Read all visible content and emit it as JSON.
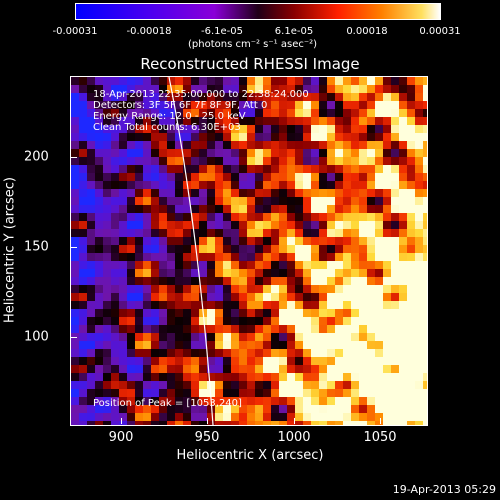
{
  "colorbar": {
    "ticks": [
      "-0.00031",
      "-0.00018",
      "-6.1e-05",
      "6.1e-05",
      "0.00018",
      "0.00031"
    ],
    "units": "(photons cm⁻² s⁻¹ asec⁻²)"
  },
  "title": "Reconstructed RHESSI Image",
  "annotations": {
    "time_range": "18-Apr-2013 22:35:00.000 to 22:38:24.000",
    "detectors": "Detectors: 3F 5F 6F 7F 8F 9F, Att 0",
    "energy": "Energy Range: 12.0 - 25.0 keV",
    "clean": "Clean     Total counts: 6.30E+03",
    "peak": "Position of Peak = [1053,240]"
  },
  "axes": {
    "x_label": "Heliocentric X (arcsec)",
    "y_label": "Heliocentric Y (arcsec)",
    "x_ticks": [
      "900",
      "950",
      "1000",
      "1050"
    ],
    "y_ticks": [
      "200",
      "150",
      "100"
    ]
  },
  "timestamp": "19-Apr-2013 05:29",
  "colors": {
    "background": "#000000",
    "limb_line": "#ffffff"
  }
}
